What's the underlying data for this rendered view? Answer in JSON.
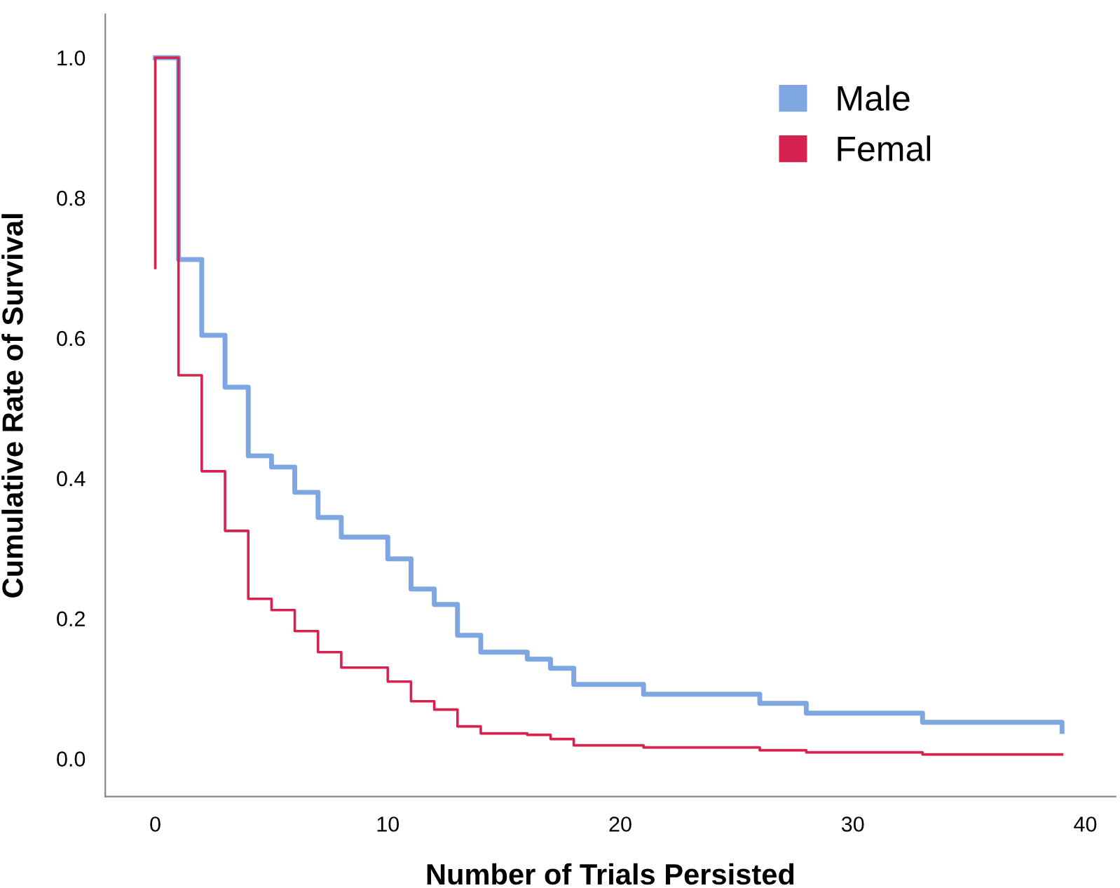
{
  "chart_data": {
    "type": "step",
    "xlabel": "Number of Trials Persisted",
    "ylabel": "Cumulative Rate of Survival",
    "xlim": [
      -2.15,
      41.3
    ],
    "ylim": [
      -0.054,
      1.062
    ],
    "xticks": [
      0,
      10,
      20,
      30,
      40
    ],
    "yticks": [
      {
        "value": 0,
        "label": "0.0"
      },
      {
        "value": 0.2,
        "label": "0.2"
      },
      {
        "value": 0.4,
        "label": "0.4"
      },
      {
        "value": 0.6,
        "label": "0.6"
      },
      {
        "value": 0.8,
        "label": "0.8"
      },
      {
        "value": 1.0,
        "label": "1.0"
      }
    ],
    "grid": false,
    "legend": "top right",
    "line_style": "solid",
    "marker": "none",
    "series": [
      {
        "name": "Male",
        "color": "#7ea6e0",
        "x": [
          0,
          1,
          2,
          3,
          4,
          5,
          6,
          7,
          8,
          10,
          11,
          12,
          13,
          14,
          16,
          17,
          18,
          21,
          26,
          28,
          33,
          39,
          39
        ],
        "values": [
          1.0,
          0.712,
          0.604,
          0.53,
          0.432,
          0.416,
          0.38,
          0.344,
          0.316,
          0.285,
          0.242,
          0.22,
          0.176,
          0.152,
          0.142,
          0.129,
          0.106,
          0.092,
          0.079,
          0.065,
          0.052,
          0.052,
          0.039
        ]
      },
      {
        "name": "Femal",
        "color": "#d6224f",
        "x": [
          0,
          0,
          1,
          2,
          3,
          4,
          5,
          6,
          7,
          8,
          10,
          11,
          12,
          13,
          14,
          16,
          17,
          18,
          21,
          26,
          28,
          33,
          39
        ],
        "values": [
          0.7,
          1.0,
          0.547,
          0.41,
          0.325,
          0.228,
          0.212,
          0.182,
          0.152,
          0.13,
          0.11,
          0.082,
          0.07,
          0.046,
          0.036,
          0.034,
          0.028,
          0.019,
          0.016,
          0.012,
          0.009,
          0.006,
          0.006
        ]
      }
    ]
  }
}
